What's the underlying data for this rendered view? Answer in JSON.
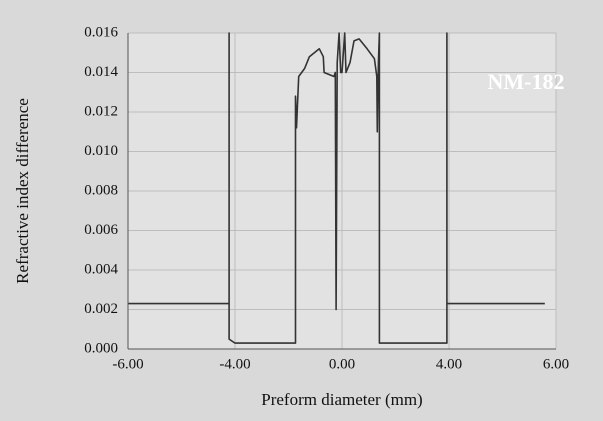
{
  "chart_data": {
    "type": "line",
    "x_label": "Preform diameter (mm)",
    "y_label": "Refractive index difference",
    "annotation": "NM-182",
    "x": [
      -6,
      -4.11,
      -4.11,
      -4.11,
      -4.0,
      -1.74,
      -1.74,
      -1.7,
      -1.62,
      -1.4,
      -1.22,
      -0.85,
      -0.7,
      -0.67,
      -0.3,
      -0.25,
      -0.22,
      -0.18,
      -0.11,
      -0.05,
      0,
      0.1,
      0.15,
      0.3,
      0.45,
      0.64,
      0.94,
      1.21,
      1.3,
      1.32,
      1.36,
      1.4,
      1.4,
      1.4,
      3.92,
      3.92,
      3.92,
      5.79
    ],
    "values": [
      0.0023,
      0.0023,
      0.016,
      0.0005,
      0.0003,
      0.0003,
      0.0128,
      0.0112,
      0.0138,
      0.0142,
      0.0148,
      0.0152,
      0.0148,
      0.014,
      0.0138,
      0.014,
      0.002,
      0.0145,
      0.016,
      0.014,
      0.014,
      0.016,
      0.014,
      0.0145,
      0.0156,
      0.0157,
      0.0152,
      0.0147,
      0.0138,
      0.011,
      0.0145,
      0.016,
      0.0047,
      0.0003,
      0.0003,
      0.016,
      0.0023,
      0.0023
    ],
    "color": "#333333",
    "xlim": [
      -6,
      6
    ],
    "xticks": [
      {
        "value": -6,
        "label": "-6.00"
      },
      {
        "value": -4,
        "label": "-4.00"
      },
      {
        "value": 0,
        "label": "0.00"
      },
      {
        "value": 4,
        "label": "4.00"
      },
      {
        "value": 6,
        "label": "6.00"
      }
    ],
    "ylim": [
      0,
      0.016
    ],
    "yticks": [
      {
        "value": 0,
        "label": "0.000"
      },
      0.002,
      0.004,
      0.006,
      0.008,
      {
        "value": 0.01,
        "label": "0.010"
      },
      0.012,
      0.014,
      0.016
    ],
    "grid": true
  }
}
